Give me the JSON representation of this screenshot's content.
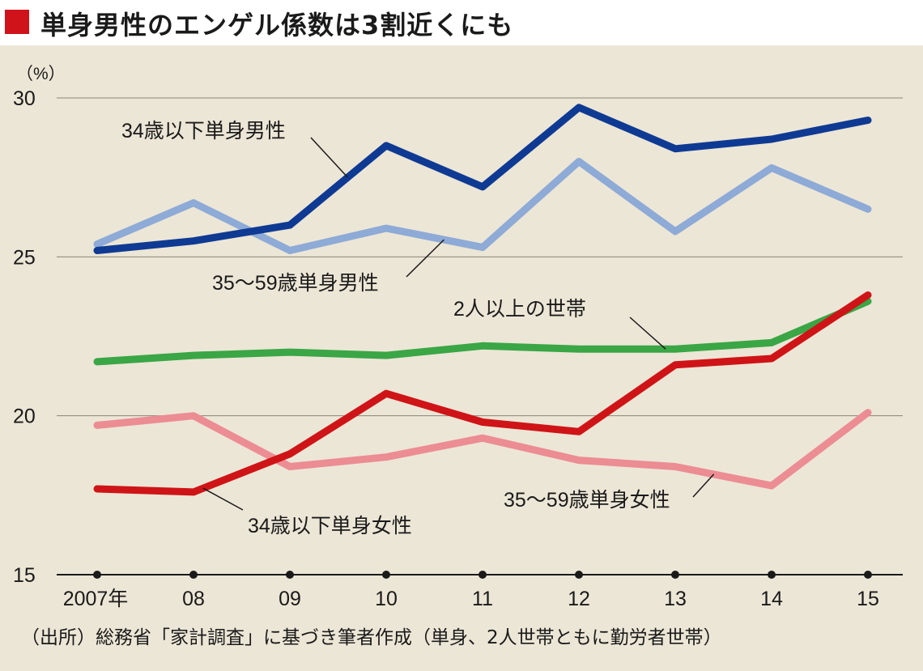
{
  "title": "単身男性のエンゲル係数は3割近くにも",
  "source": "（出所）総務省「家計調査」に基づき筆者作成（単身、2人世帯ともに勤労者世帯）",
  "colors": {
    "title_marker": "#d0121b",
    "background": "#ece6d6"
  },
  "chart_data": {
    "type": "line",
    "title": "単身男性のエンゲル係数は3割近くにも",
    "unit_label": "（%）",
    "x": [
      "2007年",
      "08",
      "09",
      "10",
      "11",
      "12",
      "13",
      "14",
      "15"
    ],
    "ylim": [
      15,
      30
    ],
    "yticks": [
      15,
      20,
      25,
      30
    ],
    "grid": true,
    "series": [
      {
        "name": "34歳以下単身男性",
        "color": "#0f3a93",
        "values": [
          25.2,
          25.5,
          26.0,
          28.5,
          27.2,
          29.7,
          28.4,
          28.7,
          29.3
        ]
      },
      {
        "name": "35〜59歳単身男性",
        "color": "#8eaad6",
        "values": [
          25.4,
          26.7,
          25.2,
          25.9,
          25.3,
          28.0,
          25.8,
          27.8,
          26.5
        ]
      },
      {
        "name": "2人以上の世帯",
        "color": "#3aa645",
        "values": [
          21.7,
          21.9,
          22.0,
          21.9,
          22.2,
          22.1,
          22.1,
          22.3,
          23.6
        ]
      },
      {
        "name": "35〜59歳単身女性",
        "color": "#ec8c93",
        "values": [
          19.7,
          20.0,
          18.4,
          18.7,
          19.3,
          18.6,
          18.4,
          17.8,
          20.1
        ]
      },
      {
        "name": "34歳以下単身女性",
        "color": "#cf1417",
        "values": [
          17.7,
          17.6,
          18.8,
          20.7,
          19.8,
          19.5,
          21.6,
          21.8,
          23.8
        ]
      }
    ]
  }
}
